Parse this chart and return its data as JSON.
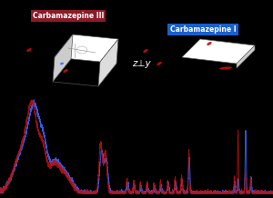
{
  "background_color": "#000000",
  "label_III": "Carbamazepine III",
  "label_I": "Carbamazepine I",
  "label_III_bg": "#8B1A2A",
  "label_I_bg": "#1A5FCC",
  "label_text_color": "#FFFFFF",
  "color_blue": "#3366FF",
  "color_red": "#BB1111",
  "middle_label": "z⊥y",
  "figsize": [
    3.0,
    2.18
  ],
  "dpi": 100
}
